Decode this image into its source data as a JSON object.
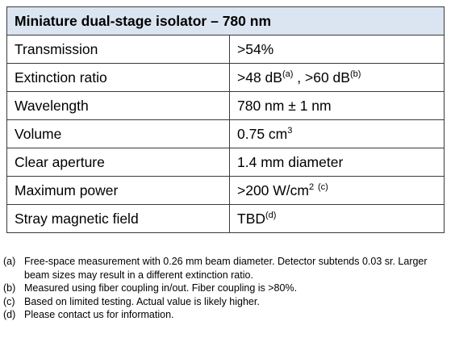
{
  "table": {
    "title": "Miniature dual-stage isolator – 780 nm",
    "rows": [
      {
        "label": "Transmission",
        "value": [
          {
            "text": ">54%"
          }
        ]
      },
      {
        "label": "Extinction ratio",
        "value": [
          {
            "text": ">48 dB"
          },
          {
            "sup": "(a)"
          },
          {
            "text": " , >60 dB"
          },
          {
            "sup": "(b)"
          }
        ]
      },
      {
        "label": "Wavelength",
        "value": [
          {
            "text": "780 nm ± 1 nm"
          }
        ]
      },
      {
        "label": "Volume",
        "value": [
          {
            "text": "0.75 cm"
          },
          {
            "sup": "3"
          }
        ]
      },
      {
        "label": "Clear aperture",
        "value": [
          {
            "text": "1.4 mm diameter"
          }
        ]
      },
      {
        "label": "Maximum power",
        "value": [
          {
            "text": ">200 W/cm"
          },
          {
            "sup": "2"
          },
          {
            "text": " "
          },
          {
            "sup": "(c)"
          }
        ]
      },
      {
        "label": "Stray magnetic field",
        "value": [
          {
            "text": "TBD"
          },
          {
            "sup": "(d)"
          }
        ]
      }
    ]
  },
  "footnotes": [
    {
      "marker": "(a)",
      "text": "Free-space measurement with 0.26 mm beam diameter.  Detector subtends 0.03 sr.  Larger beam sizes may result in a different extinction ratio."
    },
    {
      "marker": "(b)",
      "text": "Measured using fiber coupling in/out.  Fiber coupling is >80%."
    },
    {
      "marker": "(c)",
      "text": "Based on limited testing.  Actual value is likely higher."
    },
    {
      "marker": "(d)",
      "text": "Please contact us for information."
    }
  ]
}
